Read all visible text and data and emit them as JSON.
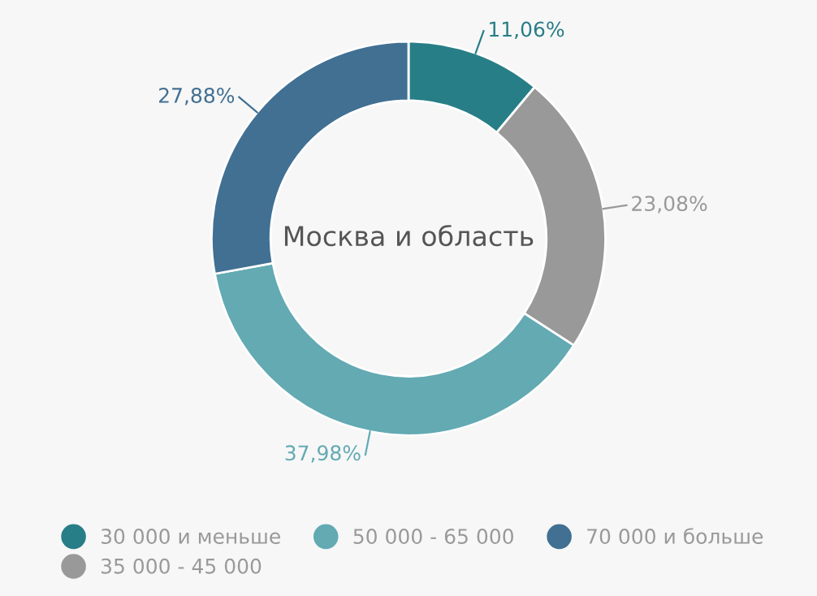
{
  "chart_data": {
    "type": "donut",
    "title": "Москва и область",
    "categories": [
      "30 000 и меньше",
      "35 000 - 45 000",
      "50 000 - 65 000",
      "70 000 и больше"
    ],
    "values": [
      11.06,
      23.08,
      37.98,
      27.88
    ],
    "value_labels": [
      "11,06%",
      "23,08%",
      "37,98%",
      "27,88%"
    ],
    "colors": [
      "#287e87",
      "#999999",
      "#63aab3",
      "#417093"
    ],
    "legend": "bottom"
  }
}
